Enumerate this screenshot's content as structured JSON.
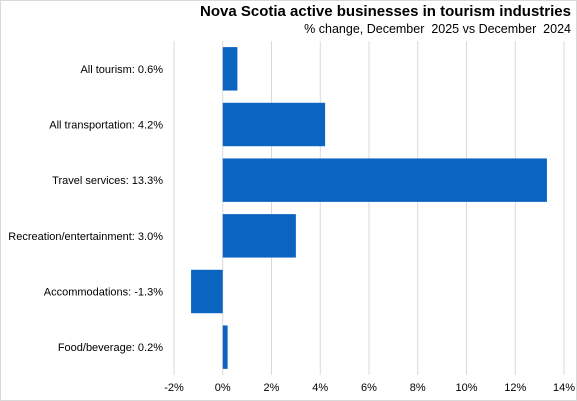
{
  "chart_data": {
    "type": "bar",
    "orientation": "horizontal",
    "title": "Nova Scotia active businesses in tourism industries",
    "subtitle": "% change, December  2025 vs December  2024",
    "categories": [
      "All tourism:  0.6%",
      "All transportation:  4.2%",
      "Travel services:  13.3%",
      "Recreation/entertainment:  3.0%",
      "Accommodations:  -1.3%",
      "Food/beverage:  0.2%"
    ],
    "values": [
      0.6,
      4.2,
      13.3,
      3.0,
      -1.3,
      0.2
    ],
    "xlim": [
      -2,
      14
    ],
    "xticks": [
      -2,
      0,
      2,
      4,
      6,
      8,
      10,
      12,
      14
    ],
    "xtick_labels": [
      "-2%",
      "0%",
      "2%",
      "4%",
      "6%",
      "8%",
      "10%",
      "12%",
      "14%"
    ],
    "grid": "vertical",
    "bar_color": "#0a64c0",
    "grid_color": "#d9d9d9"
  }
}
